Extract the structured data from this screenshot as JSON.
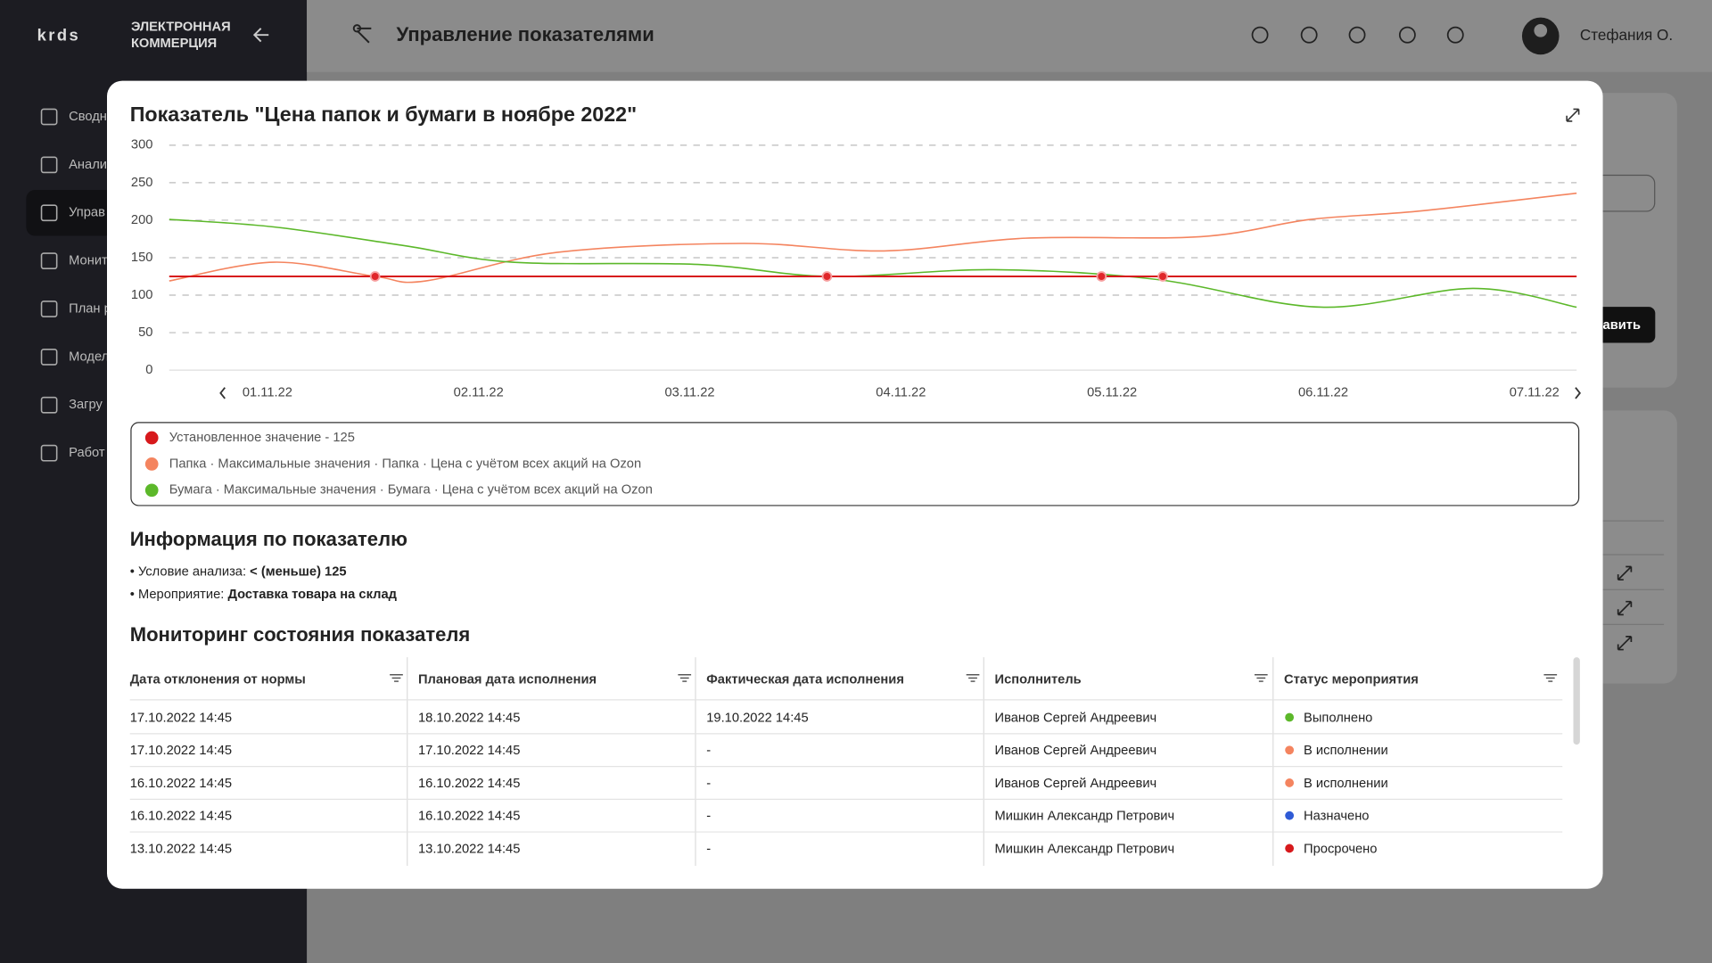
{
  "sidebar": {
    "logo_line1": "ЭЛЕКТРОННАЯ",
    "logo_line2": "КОММЕРЦИЯ",
    "items": [
      "Сводн",
      "Анали",
      "Управ",
      "Монит",
      "План р",
      "Модел",
      "Загру",
      "Работ"
    ]
  },
  "header": {
    "title": "Управление показателями",
    "user": "Стефания О."
  },
  "background": {
    "button": "авить"
  },
  "chart_data": {
    "type": "line",
    "title": "Показатель \"Цена папок и бумаги в ноябре 2022\"",
    "ylim": [
      0,
      300
    ],
    "yticks": [
      0,
      50,
      100,
      150,
      200,
      250,
      300
    ],
    "grid": true,
    "xlim": [
      0.535,
      7.2
    ],
    "xticks": [
      {
        "value": 1,
        "label": "01.11.22"
      },
      {
        "value": 2,
        "label": "02.11.22"
      },
      {
        "value": 3,
        "label": "03.11.22"
      },
      {
        "value": 4,
        "label": "04.11.22"
      },
      {
        "value": 5,
        "label": "05.11.22"
      },
      {
        "value": 6,
        "label": "06.11.22"
      },
      {
        "value": 7,
        "label": "07.11.22"
      }
    ],
    "series": [
      {
        "name": "Установленное значение - 125",
        "color": "#d7191c",
        "x": [
          0.535,
          7.2
        ],
        "values": [
          125,
          125
        ]
      },
      {
        "name": "Папка · Максимальные значения · Папка · Цена с учётом всех акций на Ozon",
        "color": "#f4845f",
        "x": [
          0.535,
          1.03,
          1.51,
          1.75,
          2.37,
          3.25,
          3.92,
          4.59,
          5.42,
          5.94,
          6.45,
          7.2
        ],
        "values": [
          119,
          144,
          125,
          119,
          157,
          169,
          159,
          176,
          178,
          201,
          212,
          236
        ]
      },
      {
        "name": "Бумага · Максимальные значения · Бумага · Цена с учётом всех акций на Ozon",
        "color": "#5cb82a",
        "x": [
          0.535,
          1.03,
          1.65,
          2.16,
          3.04,
          3.66,
          4.44,
          5.21,
          5.99,
          6.71,
          7.2
        ],
        "values": [
          201,
          191,
          166,
          144,
          141,
          125,
          134,
          121,
          84,
          109,
          84
        ]
      }
    ],
    "markers": {
      "color": "#e0262a",
      "x": [
        1.51,
        3.65,
        4.95,
        5.24
      ],
      "values": [
        125,
        125,
        125,
        125
      ]
    }
  },
  "info": {
    "title": "Информация по показателю",
    "items": [
      {
        "label": "Условие анализа:",
        "value": "< (меньше) 125"
      },
      {
        "label": "Мероприятие:",
        "value": "Доставка товара на склад"
      }
    ]
  },
  "table": {
    "title": "Мониторинг состояния показателя",
    "headers": [
      "Дата отклонения от нормы",
      "Плановая дата исполнения",
      "Фактическая дата исполнения",
      "Исполнитель",
      "Статус мероприятия"
    ],
    "rows": [
      [
        "17.10.2022 14:45",
        "18.10.2022 14:45",
        "19.10.2022 14:45",
        "Иванов Сергей Андреевич",
        "Выполнено"
      ],
      [
        "17.10.2022 14:45",
        "17.10.2022 14:45",
        "-",
        "Иванов Сергей Андреевич",
        "В исполнении"
      ],
      [
        "16.10.2022 14:45",
        "16.10.2022 14:45",
        "-",
        "Иванов Сергей Андреевич",
        "В исполнении"
      ],
      [
        "16.10.2022 14:45",
        "16.10.2022 14:45",
        "-",
        "Мишкин Александр Петрович",
        "Назначено"
      ],
      [
        "13.10.2022 14:45",
        "13.10.2022 14:45",
        "-",
        "Мишкин Александр Петрович",
        "Просрочено"
      ]
    ],
    "status_colors": [
      "#5cb82a",
      "#f4845f",
      "#f4845f",
      "#2f5bd6",
      "#d7191c"
    ]
  }
}
